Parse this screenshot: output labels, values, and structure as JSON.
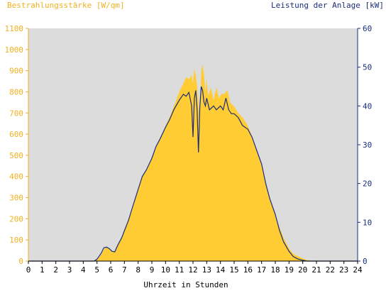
{
  "chart_data": {
    "type": "area",
    "left_axis_title": "Bestrahlungsstärke [W/qm]",
    "right_axis_title": "Leistung der Anlage [kW]",
    "xlabel": "Uhrzeit in Stunden",
    "x_ticks": [
      "0",
      "1",
      "2",
      "3",
      "4",
      "5",
      "6",
      "7",
      "8",
      "9",
      "10",
      "11",
      "12",
      "13",
      "14",
      "15",
      "16",
      "17",
      "18",
      "19",
      "20",
      "21",
      "22",
      "23",
      "24"
    ],
    "y_left_ticks": [
      "0",
      "100",
      "200",
      "300",
      "400",
      "500",
      "600",
      "700",
      "800",
      "900",
      "1000",
      "1100"
    ],
    "y_right_ticks": [
      "0",
      "10",
      "20",
      "30",
      "40",
      "50",
      "60"
    ],
    "xlim": [
      0,
      24
    ],
    "ylim_left": [
      0,
      1100
    ],
    "ylim_right": [
      0,
      60
    ],
    "grid": false,
    "colors": {
      "irradiance": "#ffcc33",
      "power": "#1a2e7a",
      "plot_bg": "#dcdcdc",
      "left_axis": "#f0b020",
      "right_axis": "#1a2e7a"
    },
    "series": [
      {
        "axis": "left",
        "style": "area",
        "x": [
          0,
          4.7,
          5.0,
          5.3,
          5.5,
          5.7,
          5.9,
          6.1,
          6.3,
          6.5,
          6.8,
          7.0,
          7.3,
          7.6,
          8.0,
          8.3,
          8.6,
          9.0,
          9.3,
          9.6,
          10.0,
          10.3,
          10.6,
          11.0,
          11.3,
          11.5,
          11.7,
          11.9,
          12.0,
          12.1,
          12.2,
          12.3,
          12.4,
          12.5,
          12.6,
          12.7,
          12.8,
          12.9,
          13.0,
          13.1,
          13.3,
          13.5,
          13.7,
          13.9,
          14.1,
          14.3,
          14.5,
          14.7,
          15.0,
          15.3,
          15.6,
          16.0,
          16.3,
          16.6,
          17.0,
          17.3,
          17.6,
          18.0,
          18.3,
          18.6,
          19.0,
          19.3,
          19.6,
          19.9,
          20.1,
          20.3,
          20.5,
          24
        ],
        "y": [
          0,
          0,
          5,
          30,
          55,
          65,
          60,
          45,
          45,
          80,
          110,
          150,
          200,
          260,
          340,
          400,
          430,
          490,
          540,
          580,
          640,
          680,
          730,
          800,
          840,
          870,
          860,
          880,
          840,
          910,
          880,
          820,
          750,
          660,
          900,
          930,
          880,
          800,
          860,
          780,
          820,
          760,
          820,
          770,
          790,
          790,
          810,
          750,
          730,
          700,
          680,
          640,
          590,
          530,
          450,
          370,
          300,
          220,
          160,
          110,
          60,
          35,
          25,
          15,
          10,
          5,
          2,
          0
        ]
      },
      {
        "axis": "right",
        "style": "line",
        "x": [
          0,
          4.8,
          5.0,
          5.3,
          5.5,
          5.7,
          5.9,
          6.1,
          6.3,
          6.5,
          6.8,
          7.0,
          7.3,
          7.6,
          8.0,
          8.3,
          8.6,
          9.0,
          9.3,
          9.6,
          10.0,
          10.3,
          10.6,
          11.0,
          11.3,
          11.5,
          11.7,
          11.9,
          12.0,
          12.1,
          12.2,
          12.3,
          12.4,
          12.5,
          12.6,
          12.7,
          12.8,
          12.9,
          13.0,
          13.2,
          13.5,
          13.7,
          14.0,
          14.2,
          14.4,
          14.6,
          14.8,
          15.0,
          15.3,
          15.6,
          16.0,
          16.3,
          16.6,
          17.0,
          17.3,
          17.6,
          18.0,
          18.3,
          18.6,
          19.0,
          19.3,
          19.6,
          20.0,
          20.3,
          24
        ],
        "y": [
          0,
          0,
          0.5,
          2,
          3.4,
          3.6,
          3.2,
          2.5,
          2.4,
          4,
          6,
          7.8,
          10.5,
          14,
          18.5,
          21.8,
          23.5,
          26.5,
          29.5,
          31.5,
          34.5,
          36.5,
          39,
          41.5,
          43,
          42.5,
          43.5,
          40,
          32,
          42,
          44,
          39,
          28,
          40,
          45,
          44,
          41,
          40,
          42,
          39,
          40,
          39,
          40,
          39,
          42,
          39,
          38,
          38,
          37,
          35,
          34,
          32,
          29,
          25,
          20,
          16,
          12,
          8,
          5,
          2.5,
          1.2,
          0.6,
          0.2,
          0,
          0
        ]
      }
    ]
  }
}
